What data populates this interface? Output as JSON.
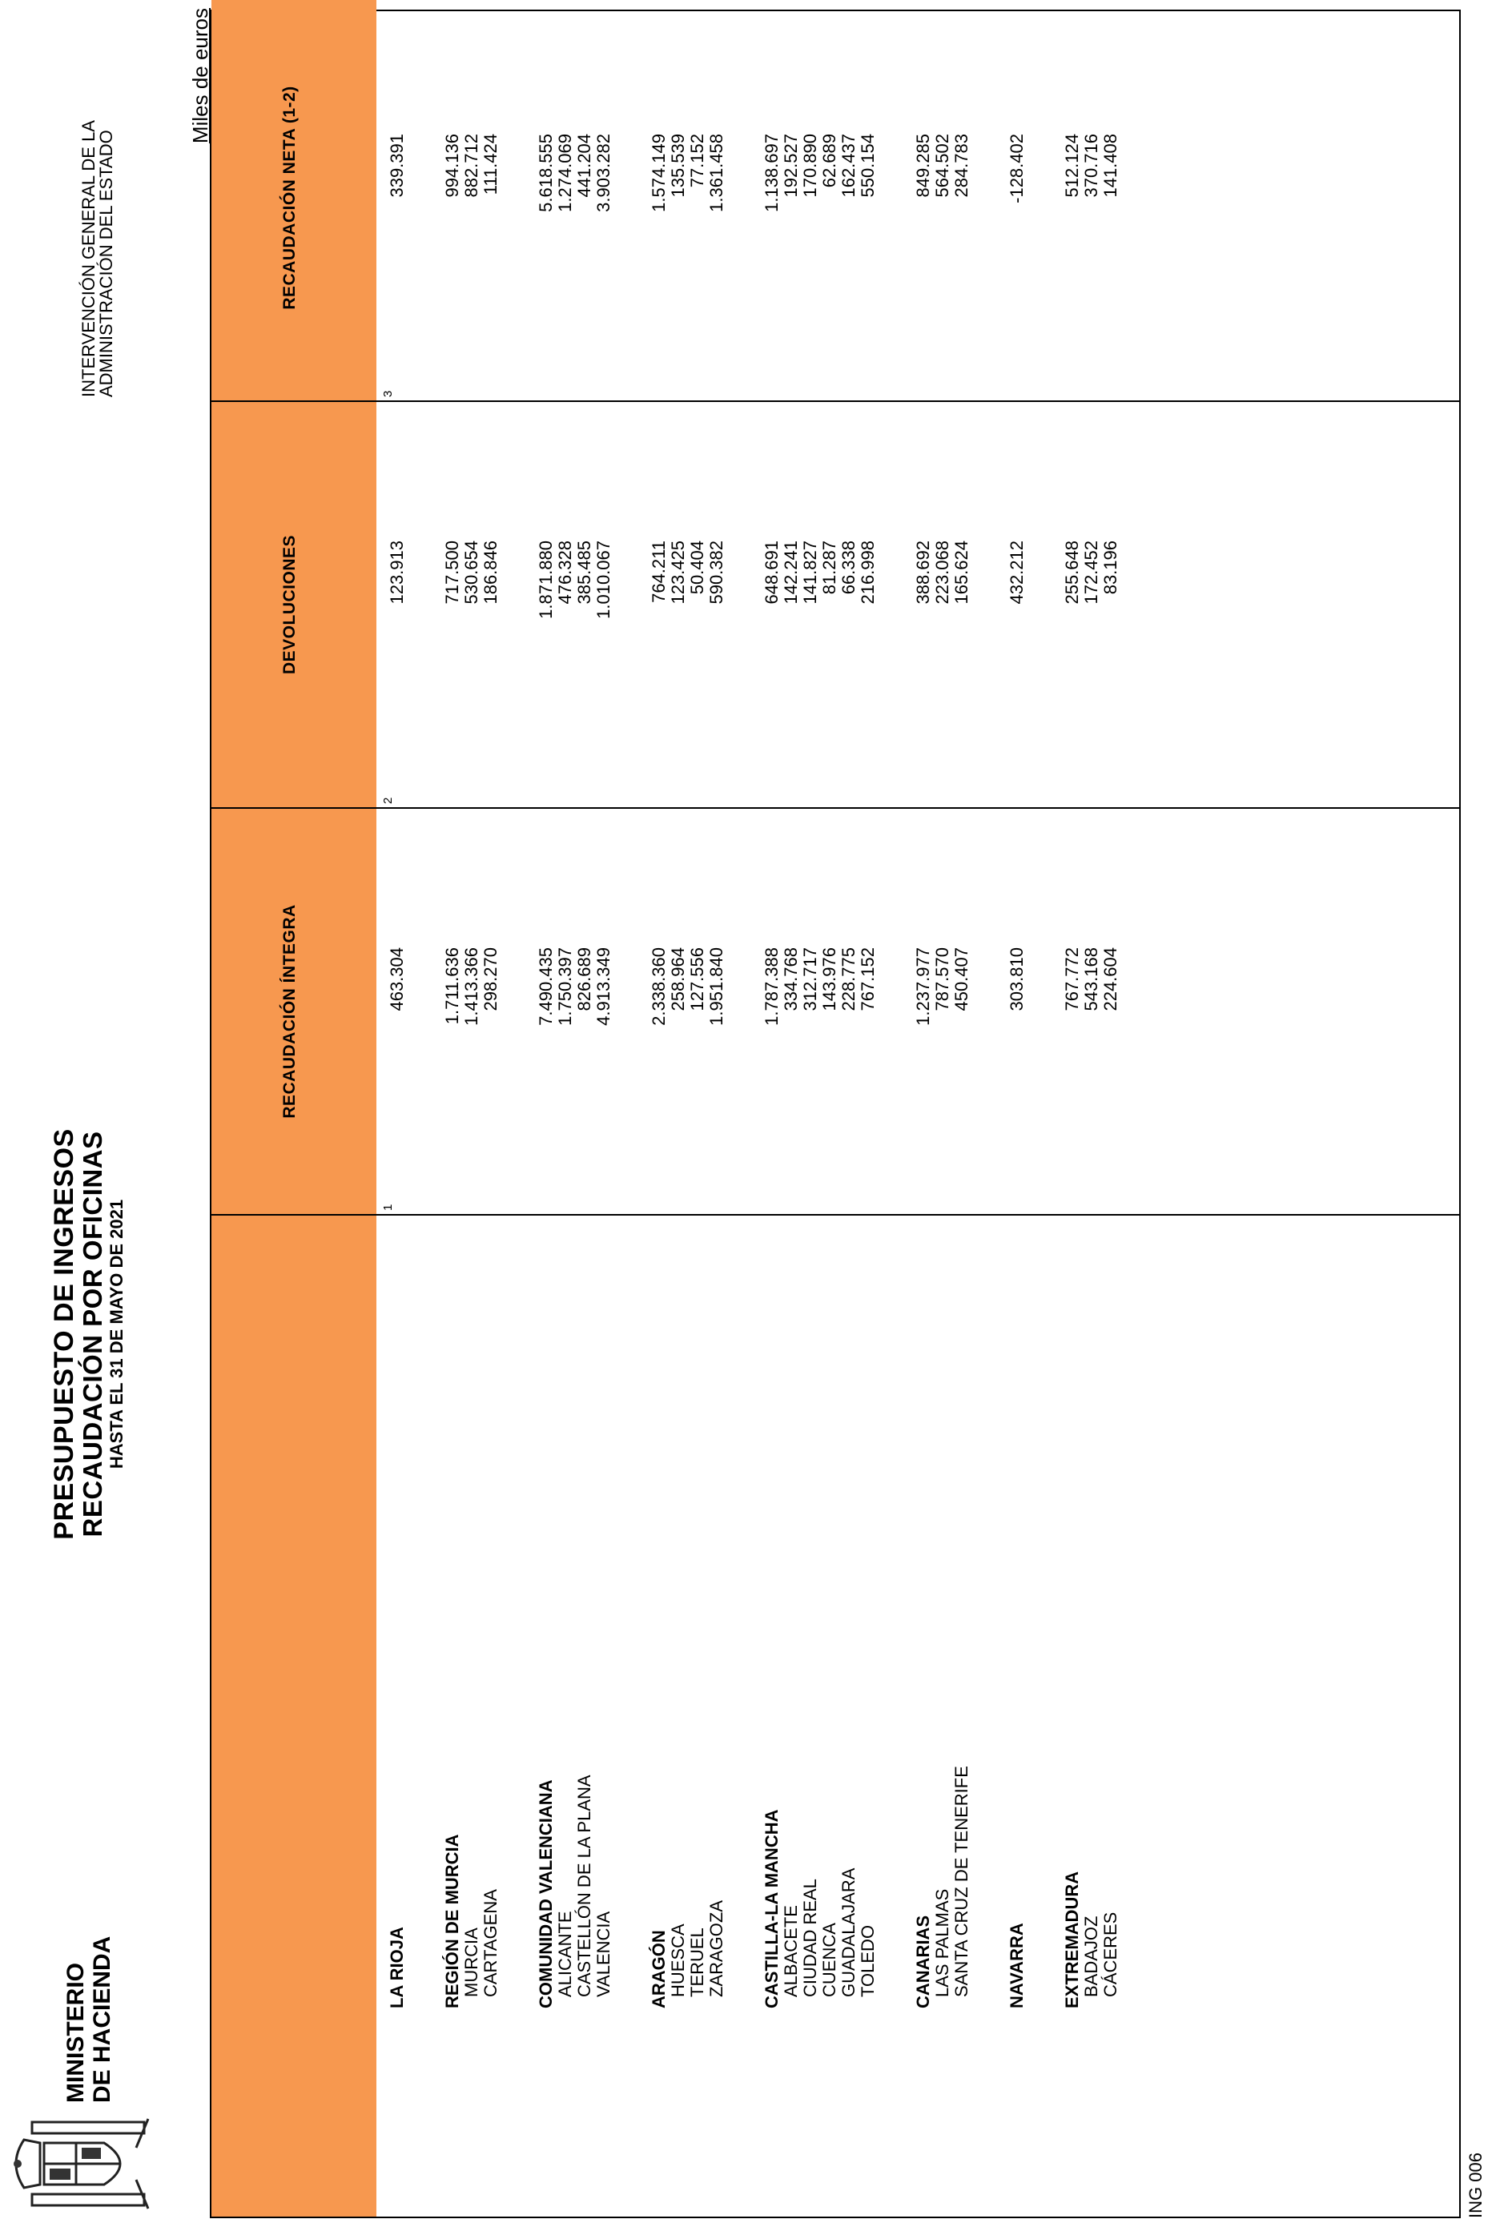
{
  "header": {
    "ministry_line1": "MINISTERIO",
    "ministry_line2": "DE HACIENDA",
    "title1": "PRESUPUESTO DE INGRESOS",
    "title2": "RECAUDACIÓN POR OFICINAS",
    "title3": "HASTA EL 31 DE MAYO DE 2021",
    "igae_line1": "INTERVENCIÓN GENERAL DE LA",
    "igae_line2": "ADMINISTRACIÓN DEL ESTADO",
    "units": "Miles de euros",
    "code": "ING 006"
  },
  "table": {
    "columns": [
      {
        "label": "RECAUDACIÓN ÍNTEGRA",
        "number": "1"
      },
      {
        "label": "DEVOLUCIONES",
        "number": "2"
      },
      {
        "label": "RECAUDACIÓN NETA (1-2)",
        "number": "3"
      }
    ],
    "groups": [
      {
        "rows": [
          {
            "name": "LA RIOJA",
            "bold": true,
            "values": [
              "463.304",
              "123.913",
              "339.391"
            ]
          }
        ]
      },
      {
        "rows": [
          {
            "name": "REGIÓN DE MURCIA",
            "bold": true,
            "values": [
              "1.711.636",
              "717.500",
              "994.136"
            ]
          },
          {
            "name": "MURCIA",
            "bold": false,
            "values": [
              "1.413.366",
              "530.654",
              "882.712"
            ]
          },
          {
            "name": "CARTAGENA",
            "bold": false,
            "values": [
              "298.270",
              "186.846",
              "111.424"
            ]
          }
        ]
      },
      {
        "rows": [
          {
            "name": "COMUNIDAD VALENCIANA",
            "bold": true,
            "values": [
              "7.490.435",
              "1.871.880",
              "5.618.555"
            ]
          },
          {
            "name": "ALICANTE",
            "bold": false,
            "values": [
              "1.750.397",
              "476.328",
              "1.274.069"
            ]
          },
          {
            "name": "CASTELLÓN DE LA PLANA",
            "bold": false,
            "values": [
              "826.689",
              "385.485",
              "441.204"
            ]
          },
          {
            "name": "VALENCIA",
            "bold": false,
            "values": [
              "4.913.349",
              "1.010.067",
              "3.903.282"
            ]
          }
        ]
      },
      {
        "rows": [
          {
            "name": "ARAGÓN",
            "bold": true,
            "values": [
              "2.338.360",
              "764.211",
              "1.574.149"
            ]
          },
          {
            "name": "HUESCA",
            "bold": false,
            "values": [
              "258.964",
              "123.425",
              "135.539"
            ]
          },
          {
            "name": "TERUEL",
            "bold": false,
            "values": [
              "127.556",
              "50.404",
              "77.152"
            ]
          },
          {
            "name": "ZARAGOZA",
            "bold": false,
            "values": [
              "1.951.840",
              "590.382",
              "1.361.458"
            ]
          }
        ]
      },
      {
        "rows": [
          {
            "name": "CASTILLA-LA MANCHA",
            "bold": true,
            "values": [
              "1.787.388",
              "648.691",
              "1.138.697"
            ]
          },
          {
            "name": "ALBACETE",
            "bold": false,
            "values": [
              "334.768",
              "142.241",
              "192.527"
            ]
          },
          {
            "name": "CIUDAD REAL",
            "bold": false,
            "values": [
              "312.717",
              "141.827",
              "170.890"
            ]
          },
          {
            "name": "CUENCA",
            "bold": false,
            "values": [
              "143.976",
              "81.287",
              "62.689"
            ]
          },
          {
            "name": "GUADALAJARA",
            "bold": false,
            "values": [
              "228.775",
              "66.338",
              "162.437"
            ]
          },
          {
            "name": "TOLEDO",
            "bold": false,
            "values": [
              "767.152",
              "216.998",
              "550.154"
            ]
          }
        ]
      },
      {
        "rows": [
          {
            "name": "CANARIAS",
            "bold": true,
            "values": [
              "1.237.977",
              "388.692",
              "849.285"
            ]
          },
          {
            "name": "LAS PALMAS",
            "bold": false,
            "values": [
              "787.570",
              "223.068",
              "564.502"
            ]
          },
          {
            "name": "SANTA CRUZ DE TENERIFE",
            "bold": false,
            "values": [
              "450.407",
              "165.624",
              "284.783"
            ]
          }
        ]
      },
      {
        "rows": [
          {
            "name": "NAVARRA",
            "bold": true,
            "values": [
              "303.810",
              "432.212",
              "-128.402"
            ]
          }
        ]
      },
      {
        "rows": [
          {
            "name": "EXTREMADURA",
            "bold": true,
            "values": [
              "767.772",
              "255.648",
              "512.124"
            ]
          },
          {
            "name": "BADAJOZ",
            "bold": false,
            "values": [
              "543.168",
              "172.452",
              "370.716"
            ]
          },
          {
            "name": "CÁCERES",
            "bold": false,
            "values": [
              "224.604",
              "83.196",
              "141.408"
            ]
          }
        ]
      }
    ]
  }
}
